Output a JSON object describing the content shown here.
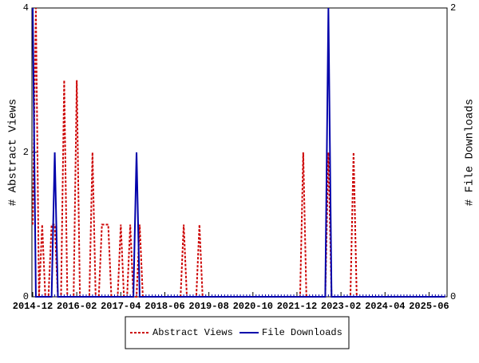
{
  "chart_data": {
    "type": "line",
    "y_label": "# Abstract Views",
    "y2_label": "# File Downloads",
    "categories": [
      "2014-12",
      null,
      null,
      null,
      null,
      null,
      null,
      null,
      null,
      null,
      null,
      null,
      null,
      null,
      "2016-02",
      null,
      null,
      null,
      null,
      null,
      null,
      null,
      null,
      null,
      null,
      null,
      null,
      null,
      "2017-04",
      null,
      null,
      null,
      null,
      null,
      null,
      null,
      null,
      null,
      null,
      null,
      null,
      null,
      "2018-06",
      null,
      null,
      null,
      null,
      null,
      null,
      null,
      null,
      null,
      null,
      null,
      null,
      null,
      "2019-08",
      null,
      null,
      null,
      null,
      null,
      null,
      null,
      null,
      null,
      null,
      null,
      null,
      null,
      "2020-10",
      null,
      null,
      null,
      null,
      null,
      null,
      null,
      null,
      null,
      null,
      null,
      null,
      null,
      "2021-12",
      null,
      null,
      null,
      null,
      null,
      null,
      null,
      null,
      null,
      null,
      null,
      null,
      null,
      "2023-02",
      null,
      null,
      null,
      null,
      null,
      null,
      null,
      null,
      null,
      null,
      null,
      null,
      null,
      "2024-04",
      null,
      null,
      null,
      null,
      null,
      null,
      null,
      null,
      null,
      null,
      null,
      null,
      null,
      "2025-06",
      null,
      null,
      null,
      null,
      null
    ],
    "series": [
      {
        "name": "Abstract Views",
        "color": "#cc0000",
        "dashed": true,
        "axis": "y",
        "values": [
          1,
          4,
          0,
          1,
          0,
          0,
          1,
          1,
          0,
          0,
          3,
          0,
          0,
          0,
          3,
          0,
          0,
          0,
          0,
          2,
          0,
          0,
          1,
          1,
          1,
          0,
          0,
          0,
          1,
          0,
          0,
          1,
          0,
          0,
          1,
          0,
          0,
          0,
          0,
          0,
          0,
          0,
          0,
          0,
          0,
          0,
          0,
          0,
          1,
          0,
          0,
          0,
          0,
          1,
          0,
          0,
          0,
          0,
          0,
          0,
          0,
          0,
          0,
          0,
          0,
          0,
          0,
          0,
          0,
          0,
          0,
          0,
          0,
          0,
          0,
          0,
          0,
          0,
          0,
          0,
          0,
          0,
          0,
          0,
          0,
          0,
          2,
          0,
          0,
          0,
          0,
          0,
          0,
          0,
          2,
          0,
          0,
          0,
          0,
          0,
          0,
          0,
          2,
          0,
          0,
          0,
          0,
          0,
          0,
          0,
          0,
          0,
          0,
          0,
          0,
          0,
          0,
          0,
          0,
          0,
          0,
          0,
          0,
          0,
          0,
          0,
          0,
          0,
          0,
          0,
          0,
          0
        ]
      },
      {
        "name": "File Downloads",
        "color": "#0000aa",
        "dashed": false,
        "axis": "y2",
        "values": [
          2,
          0,
          0,
          0,
          0,
          0,
          0,
          1,
          0,
          0,
          0,
          0,
          0,
          0,
          0,
          0,
          0,
          0,
          0,
          0,
          0,
          0,
          0,
          0,
          0,
          0,
          0,
          0,
          0,
          0,
          0,
          0,
          0,
          1,
          0,
          0,
          0,
          0,
          0,
          0,
          0,
          0,
          0,
          0,
          0,
          0,
          0,
          0,
          0,
          0,
          0,
          0,
          0,
          0,
          0,
          0,
          0,
          0,
          0,
          0,
          0,
          0,
          0,
          0,
          0,
          0,
          0,
          0,
          0,
          0,
          0,
          0,
          0,
          0,
          0,
          0,
          0,
          0,
          0,
          0,
          0,
          0,
          0,
          0,
          0,
          0,
          0,
          0,
          0,
          0,
          0,
          0,
          0,
          0,
          2,
          0,
          0,
          0,
          0,
          0,
          0,
          0,
          0,
          0,
          0,
          0,
          0,
          0,
          0,
          0,
          0,
          0,
          0,
          0,
          0,
          0,
          0,
          0,
          0,
          0,
          0,
          0,
          0,
          0,
          0,
          0,
          0,
          0,
          0,
          0,
          0,
          0
        ]
      }
    ],
    "ylim": [
      0,
      4
    ],
    "yticks": [
      0,
      2,
      4
    ],
    "y2lim": [
      0,
      2
    ],
    "y2ticks": [
      0,
      2
    ],
    "legend": "bottom"
  }
}
